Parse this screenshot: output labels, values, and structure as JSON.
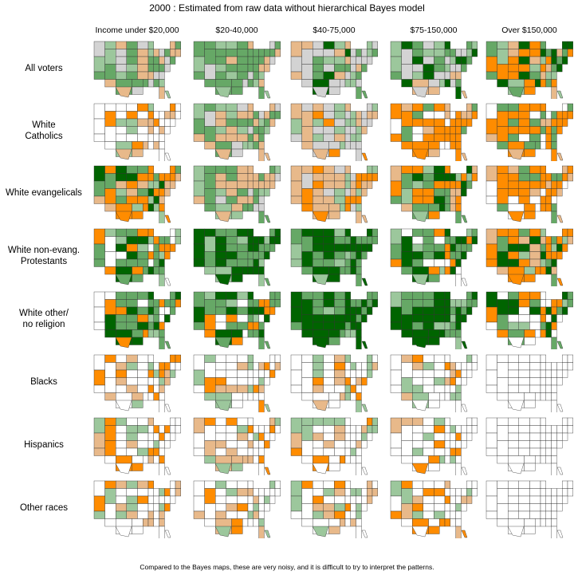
{
  "title": "2000 :  Estimated from raw data without hierarchical Bayes model",
  "columns": [
    "Income under $20,000",
    "$20-40,000",
    "$40-75,000",
    "$75-150,000",
    "Over $150,000"
  ],
  "rows": [
    "All voters",
    "White\nCatholics",
    "White evangelicals",
    "White non-evang.\nProtestants",
    "White other/\nno religion",
    "Blacks",
    "Hispanics",
    "Other races"
  ],
  "caption": "Compared to the Bayes maps, these are very noisy, and it is difficult to try to interpret the patterns.",
  "legend_colors": {
    "strong_rep": "#ff8c00",
    "lean_rep": "#e8b98a",
    "tossup": "#d3d3d3",
    "lean_dem": "#9cc79c",
    "dem": "#66a866",
    "strong_dem": "#006400",
    "no_data": "#ffffff"
  },
  "map_fills": [
    [
      "mixed_tan_green",
      "mixed_green",
      "mixed_green_grey",
      "mixed_grey_green",
      "mixed_orange_green"
    ],
    [
      "mostly_white",
      "mixed_tan_green",
      "mixed_grey_tan",
      "mostly_orange",
      "mostly_orange"
    ],
    [
      "mixed_orange_green",
      "mixed_tan_green",
      "mostly_tan",
      "mixed_orange_green",
      "mostly_orange"
    ],
    [
      "mostly_green",
      "mostly_dark_green",
      "mostly_dark_green",
      "mostly_green",
      "mixed_orange_green"
    ],
    [
      "mostly_green",
      "mostly_green",
      "mostly_dark_green",
      "mostly_dark_green",
      "mixed_white_green"
    ],
    [
      "mostly_white",
      "mostly_white",
      "mostly_white",
      "mostly_white",
      "all_white"
    ],
    [
      "mostly_white",
      "mostly_white",
      "mostly_white",
      "mostly_white",
      "all_white"
    ],
    [
      "mostly_white",
      "mostly_white",
      "mostly_white",
      "mostly_white",
      "all_white"
    ]
  ]
}
